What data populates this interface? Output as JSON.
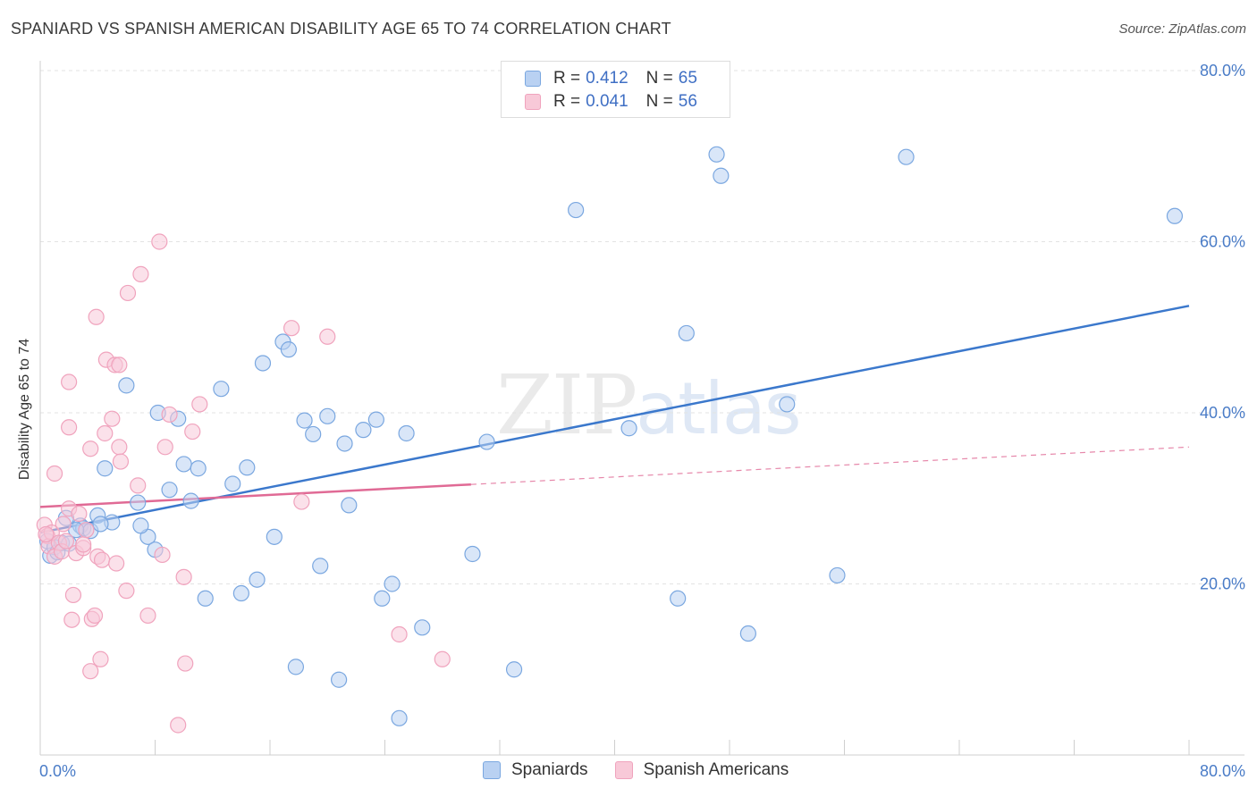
{
  "title": "SPANIARD VS SPANISH AMERICAN DISABILITY AGE 65 TO 74 CORRELATION CHART",
  "source": "Source: ZipAtlas.com",
  "watermark": {
    "zip": "ZIP",
    "atlas": "atlas"
  },
  "legend_top": [
    {
      "r_label": "R =",
      "r_value": "0.412",
      "n_label": "N =",
      "n_value": "65"
    },
    {
      "r_label": "R =",
      "r_value": "0.041",
      "n_label": "N =",
      "n_value": "56"
    }
  ],
  "chart_data": {
    "type": "scatter",
    "title": "SPANIARD VS SPANISH AMERICAN DISABILITY AGE 65 TO 74 CORRELATION CHART",
    "xlabel": "",
    "ylabel": "Disability Age 65 to 74",
    "xlim": [
      0,
      80
    ],
    "ylim": [
      0,
      80
    ],
    "x_ticks": [
      {
        "value": 0,
        "label": "0.0%"
      },
      {
        "value": 80,
        "label": "80.0%"
      }
    ],
    "y_ticks": [
      {
        "value": 20,
        "label": "20.0%"
      },
      {
        "value": 40,
        "label": "40.0%"
      },
      {
        "value": 60,
        "label": "60.0%"
      },
      {
        "value": 80,
        "label": "80.0%"
      }
    ],
    "grid": true,
    "legend_position": "bottom",
    "series": [
      {
        "name": "Spaniards",
        "color": "#7aa7e0",
        "fill": "#b9d1f2",
        "line_color": "#3b78cc",
        "r": 0.412,
        "n": 65,
        "trend": {
          "x": [
            0,
            80
          ],
          "y": [
            26.0,
            52.5
          ],
          "dashed_after": null
        },
        "points": [
          [
            0.5,
            25.0
          ],
          [
            0.7,
            23.3
          ],
          [
            1.0,
            24.3
          ],
          [
            1.2,
            23.7
          ],
          [
            1.5,
            24.8
          ],
          [
            1.8,
            27.7
          ],
          [
            2.0,
            24.7
          ],
          [
            2.8,
            26.8
          ],
          [
            3.0,
            26.5
          ],
          [
            3.5,
            26.2
          ],
          [
            4.0,
            28.0
          ],
          [
            4.5,
            33.5
          ],
          [
            5.0,
            27.2
          ],
          [
            6.0,
            43.2
          ],
          [
            6.8,
            29.5
          ],
          [
            7.5,
            25.5
          ],
          [
            8.0,
            24.0
          ],
          [
            8.2,
            40.0
          ],
          [
            9.0,
            31.0
          ],
          [
            10.0,
            34.0
          ],
          [
            10.5,
            29.7
          ],
          [
            9.6,
            39.3
          ],
          [
            11.0,
            33.5
          ],
          [
            11.5,
            18.3
          ],
          [
            12.6,
            42.8
          ],
          [
            13.4,
            31.7
          ],
          [
            14.0,
            18.9
          ],
          [
            14.4,
            33.6
          ],
          [
            15.1,
            20.5
          ],
          [
            15.5,
            45.8
          ],
          [
            16.3,
            25.5
          ],
          [
            16.9,
            48.3
          ],
          [
            17.3,
            47.4
          ],
          [
            17.8,
            10.3
          ],
          [
            18.4,
            39.1
          ],
          [
            19.0,
            37.5
          ],
          [
            19.5,
            22.1
          ],
          [
            20.0,
            39.6
          ],
          [
            20.8,
            8.8
          ],
          [
            21.2,
            36.4
          ],
          [
            21.5,
            29.2
          ],
          [
            22.5,
            38.0
          ],
          [
            23.4,
            39.2
          ],
          [
            23.8,
            18.3
          ],
          [
            24.5,
            20.0
          ],
          [
            25.0,
            4.3
          ],
          [
            25.5,
            37.6
          ],
          [
            26.6,
            14.9
          ],
          [
            30.1,
            23.5
          ],
          [
            31.1,
            36.6
          ],
          [
            33.0,
            10.0
          ],
          [
            37.3,
            63.7
          ],
          [
            41.0,
            38.2
          ],
          [
            44.4,
            18.3
          ],
          [
            45.0,
            49.3
          ],
          [
            47.1,
            70.2
          ],
          [
            47.4,
            67.7
          ],
          [
            49.3,
            14.2
          ],
          [
            52.0,
            41.0
          ],
          [
            55.5,
            21.0
          ],
          [
            60.3,
            69.9
          ],
          [
            79.0,
            63.0
          ],
          [
            4.2,
            27.0
          ],
          [
            7.0,
            26.8
          ],
          [
            2.5,
            26.3
          ]
        ]
      },
      {
        "name": "Spanish Americans",
        "color": "#f0a3bd",
        "fill": "#f8c9d8",
        "line_color": "#e06a95",
        "r": 0.041,
        "n": 56,
        "trend": {
          "x": [
            0,
            80
          ],
          "y": [
            29.0,
            36.0
          ],
          "solid_until": 30
        },
        "points": [
          [
            0.3,
            26.9
          ],
          [
            0.5,
            25.6
          ],
          [
            0.6,
            24.4
          ],
          [
            0.8,
            26.0
          ],
          [
            1.0,
            23.2
          ],
          [
            1.0,
            32.9
          ],
          [
            1.3,
            24.8
          ],
          [
            1.5,
            23.8
          ],
          [
            1.8,
            25.0
          ],
          [
            2.0,
            28.8
          ],
          [
            2.0,
            43.6
          ],
          [
            2.0,
            38.3
          ],
          [
            2.2,
            15.8
          ],
          [
            2.3,
            18.7
          ],
          [
            2.5,
            23.6
          ],
          [
            2.7,
            28.2
          ],
          [
            3.0,
            24.2
          ],
          [
            3.2,
            26.3
          ],
          [
            3.5,
            35.8
          ],
          [
            3.6,
            15.9
          ],
          [
            3.5,
            9.8
          ],
          [
            3.8,
            16.3
          ],
          [
            3.9,
            51.2
          ],
          [
            4.0,
            23.2
          ],
          [
            4.2,
            11.2
          ],
          [
            4.3,
            22.8
          ],
          [
            4.5,
            37.6
          ],
          [
            4.6,
            46.2
          ],
          [
            5.0,
            39.3
          ],
          [
            5.2,
            45.6
          ],
          [
            5.3,
            22.4
          ],
          [
            5.5,
            45.6
          ],
          [
            5.5,
            36.0
          ],
          [
            5.6,
            34.3
          ],
          [
            6.0,
            19.2
          ],
          [
            6.1,
            54.0
          ],
          [
            6.8,
            31.5
          ],
          [
            7.0,
            56.2
          ],
          [
            7.5,
            16.3
          ],
          [
            8.3,
            60.0
          ],
          [
            8.5,
            23.4
          ],
          [
            8.7,
            36.0
          ],
          [
            9.0,
            39.8
          ],
          [
            9.6,
            3.5
          ],
          [
            10.0,
            20.8
          ],
          [
            10.1,
            10.7
          ],
          [
            10.6,
            37.8
          ],
          [
            11.1,
            41.0
          ],
          [
            17.5,
            49.9
          ],
          [
            18.2,
            29.6
          ],
          [
            20.0,
            48.9
          ],
          [
            25.0,
            14.1
          ],
          [
            28.0,
            11.2
          ],
          [
            0.4,
            25.8
          ],
          [
            1.6,
            27.0
          ],
          [
            3.0,
            24.6
          ]
        ]
      }
    ]
  }
}
